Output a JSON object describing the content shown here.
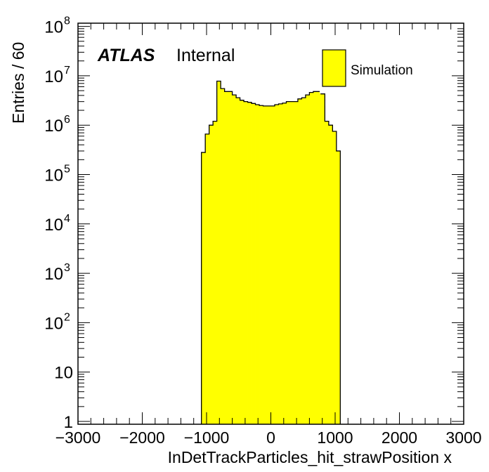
{
  "chart_data": {
    "type": "bar",
    "title": "",
    "xlabel": "InDetTrackParticles_hit_strawPosition x",
    "ylabel": "Entries / 60",
    "xlim": [
      -3000,
      3000
    ],
    "ylim": [
      0.9,
      120000000.0
    ],
    "yscale": "log",
    "bin_width": 60,
    "bin_start": -1080,
    "values": [
      280000,
      660000,
      1000000,
      1200000,
      7800000,
      5500000,
      4800000,
      4800000,
      4100000,
      3600000,
      3200000,
      3000000,
      2900000,
      2750000,
      2600000,
      2500000,
      2450000,
      2450000,
      2450000,
      2600000,
      2700000,
      2800000,
      3000000,
      3000000,
      3000000,
      3400000,
      3600000,
      4100000,
      4600000,
      4800000,
      4800000,
      4300000,
      1200000,
      1000000,
      750000,
      300000
    ],
    "x_ticks": [
      "−3000",
      "−2000",
      "−1000",
      "0",
      "1000",
      "2000",
      "3000"
    ],
    "x_tick_values": [
      -3000,
      -2000,
      -1000,
      0,
      1000,
      2000,
      3000
    ],
    "y_ticks": [
      {
        "v": 1,
        "base": "1",
        "exp": ""
      },
      {
        "v": 10,
        "base": "10",
        "exp": ""
      },
      {
        "v": 100,
        "base": "10",
        "exp": "2"
      },
      {
        "v": 1000,
        "base": "10",
        "exp": "3"
      },
      {
        "v": 10000,
        "base": "10",
        "exp": "4"
      },
      {
        "v": 100000,
        "base": "10",
        "exp": "5"
      },
      {
        "v": 1000000,
        "base": "10",
        "exp": "6"
      },
      {
        "v": 10000000,
        "base": "10",
        "exp": "7"
      },
      {
        "v": 100000000,
        "base": "10",
        "exp": "8"
      }
    ],
    "legend": {
      "entries": [
        "Simulation"
      ],
      "placement": "top-right"
    },
    "fill_color": "#ffff00",
    "annotations": {
      "atlas": "ATLAS",
      "internal": "Internal"
    }
  }
}
